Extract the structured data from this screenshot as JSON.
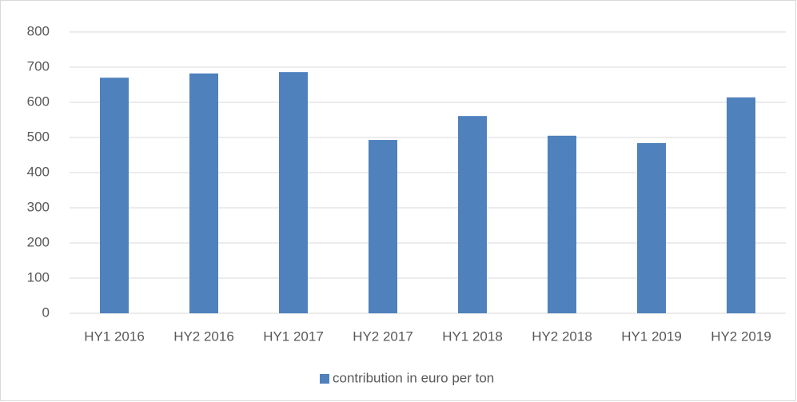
{
  "chart_data": {
    "type": "bar",
    "categories": [
      "HY1 2016",
      "HY2 2016",
      "HY1 2017",
      "HY2 2017",
      "HY1 2018",
      "HY2 2018",
      "HY1 2019",
      "HY2 2019"
    ],
    "series": [
      {
        "name": "contribution in euro per ton",
        "color": "#4f81bd",
        "values": [
          670,
          682,
          686,
          493,
          561,
          505,
          484,
          614
        ]
      }
    ],
    "ylim": [
      0,
      800
    ],
    "yticks": [
      0,
      100,
      200,
      300,
      400,
      500,
      600,
      700,
      800
    ],
    "grid": true,
    "legend": "bottom"
  }
}
